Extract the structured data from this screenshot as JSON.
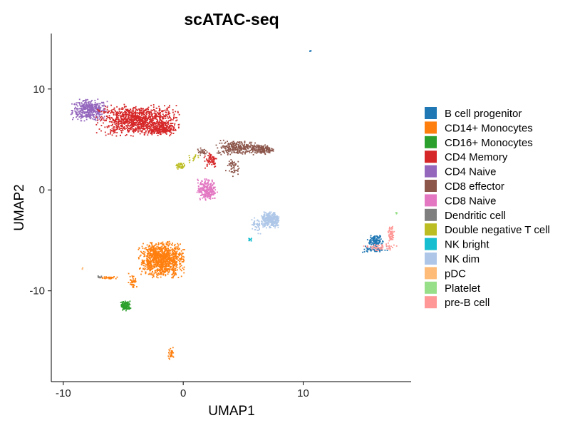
{
  "chart_data": {
    "type": "scatter",
    "title": "scATAC-seq",
    "xlabel": "UMAP1",
    "ylabel": "UMAP2",
    "xlim": [
      -11,
      19
    ],
    "ylim": [
      -19,
      15.5
    ],
    "xticks": [
      -10,
      0,
      10
    ],
    "yticks": [
      10,
      0,
      -10
    ],
    "grid": false,
    "legend_position": "right",
    "legend": [
      {
        "name": "B cell progenitor",
        "color": "#1f77b4"
      },
      {
        "name": "CD14+ Monocytes",
        "color": "#ff7f0e"
      },
      {
        "name": "CD16+ Monocytes",
        "color": "#2ca02c"
      },
      {
        "name": "CD4 Memory",
        "color": "#d62728"
      },
      {
        "name": "CD4 Naive",
        "color": "#9467bd"
      },
      {
        "name": "CD8 effector",
        "color": "#8c564b"
      },
      {
        "name": "CD8 Naive",
        "color": "#e377c2"
      },
      {
        "name": "Dendritic cell",
        "color": "#7f7f7f"
      },
      {
        "name": "Double negative T cell",
        "color": "#bcbd22"
      },
      {
        "name": "NK bright",
        "color": "#17becf"
      },
      {
        "name": "NK dim",
        "color": "#aec7e8"
      },
      {
        "name": "pDC",
        "color": "#ffbb78"
      },
      {
        "name": "Platelet",
        "color": "#98df8a"
      },
      {
        "name": "pre-B cell",
        "color": "#ff9896"
      }
    ],
    "clusters": [
      {
        "label": "CD4 Naive",
        "center": [
          -7.8,
          7.9
        ],
        "spread": [
          1.3,
          0.9
        ],
        "n": 420
      },
      {
        "label": "CD4 Memory",
        "center": [
          -3.8,
          6.9
        ],
        "spread": [
          2.9,
          1.3
        ],
        "n": 1100
      },
      {
        "label": "CD4 Memory",
        "center": [
          -1.8,
          6.0
        ],
        "spread": [
          1.0,
          0.5
        ],
        "n": 180
      },
      {
        "label": "CD4 Memory",
        "center": [
          2.3,
          3.0
        ],
        "spread": [
          0.5,
          0.7
        ],
        "n": 70
      },
      {
        "label": "CD8 effector",
        "center": [
          4.6,
          4.2
        ],
        "spread": [
          1.6,
          0.6
        ],
        "n": 280
      },
      {
        "label": "CD8 effector",
        "center": [
          6.6,
          4.0
        ],
        "spread": [
          0.8,
          0.4
        ],
        "n": 140
      },
      {
        "label": "CD8 effector",
        "center": [
          4.1,
          2.3
        ],
        "spread": [
          0.5,
          0.8
        ],
        "n": 50
      },
      {
        "label": "CD8 effector",
        "center": [
          1.6,
          3.8
        ],
        "spread": [
          0.4,
          0.3
        ],
        "n": 25
      },
      {
        "label": "CD8 Naive",
        "center": [
          2.0,
          0.0
        ],
        "spread": [
          0.7,
          0.9
        ],
        "n": 260
      },
      {
        "label": "Double negative T cell",
        "center": [
          -0.3,
          2.4
        ],
        "spread": [
          0.35,
          0.3
        ],
        "n": 40
      },
      {
        "label": "Double negative T cell",
        "center": [
          0.9,
          3.2
        ],
        "spread": [
          0.5,
          0.4
        ],
        "n": 15
      },
      {
        "label": "NK dim",
        "center": [
          7.3,
          -3.0
        ],
        "spread": [
          0.7,
          0.7
        ],
        "n": 320
      },
      {
        "label": "NK dim",
        "center": [
          6.1,
          -3.6
        ],
        "spread": [
          0.4,
          0.9
        ],
        "n": 40
      },
      {
        "label": "NK bright",
        "center": [
          5.6,
          -4.9
        ],
        "spread": [
          0.15,
          0.15
        ],
        "n": 10
      },
      {
        "label": "B cell progenitor",
        "center": [
          10.6,
          13.8
        ],
        "spread": [
          0.08,
          0.08
        ],
        "n": 6
      },
      {
        "label": "B cell progenitor",
        "center": [
          16.0,
          -5.0
        ],
        "spread": [
          0.6,
          0.4
        ],
        "n": 120
      },
      {
        "label": "B cell progenitor",
        "center": [
          16.0,
          -5.9
        ],
        "spread": [
          0.9,
          0.3
        ],
        "n": 60
      },
      {
        "label": "pre-B cell",
        "center": [
          17.3,
          -4.4
        ],
        "spread": [
          0.3,
          0.8
        ],
        "n": 60
      },
      {
        "label": "pre-B cell",
        "center": [
          16.4,
          -5.7
        ],
        "spread": [
          1.2,
          0.3
        ],
        "n": 60
      },
      {
        "label": "Platelet",
        "center": [
          17.8,
          -2.3
        ],
        "spread": [
          0.06,
          0.08
        ],
        "n": 4
      },
      {
        "label": "CD14+ Monocytes",
        "center": [
          -1.8,
          -6.9
        ],
        "spread": [
          1.6,
          1.5
        ],
        "n": 1100
      },
      {
        "label": "CD14+ Monocytes",
        "center": [
          -4.2,
          -9.0
        ],
        "spread": [
          0.3,
          0.6
        ],
        "n": 40
      },
      {
        "label": "CD14+ Monocytes",
        "center": [
          -6.2,
          -8.7
        ],
        "spread": [
          0.6,
          0.1
        ],
        "n": 30
      },
      {
        "label": "CD14+ Monocytes",
        "center": [
          -1.0,
          -16.2
        ],
        "spread": [
          0.2,
          0.6
        ],
        "n": 35
      },
      {
        "label": "CD16+ Monocytes",
        "center": [
          -4.8,
          -11.5
        ],
        "spread": [
          0.35,
          0.4
        ],
        "n": 150
      },
      {
        "label": "Dendritic cell",
        "center": [
          -7.0,
          -8.6
        ],
        "spread": [
          0.2,
          0.1
        ],
        "n": 10
      },
      {
        "label": "pDC",
        "center": [
          -8.4,
          -7.8
        ],
        "spread": [
          0.1,
          0.1
        ],
        "n": 4
      }
    ]
  }
}
